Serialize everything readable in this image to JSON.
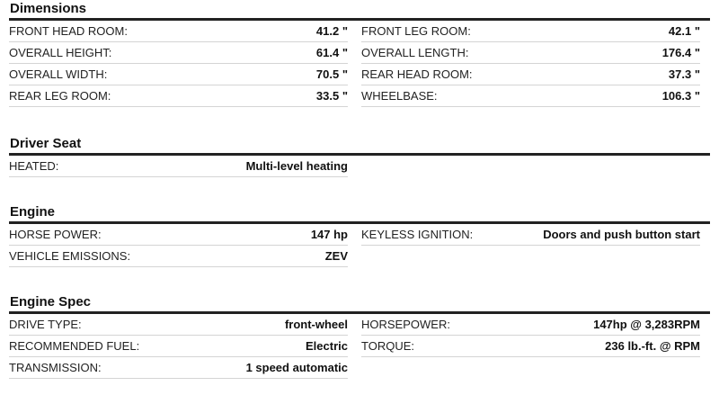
{
  "sections": [
    {
      "title": "Dimensions",
      "rows": [
        [
          {
            "label": "FRONT HEAD ROOM:",
            "value": "41.2 \""
          },
          {
            "label": "FRONT LEG ROOM:",
            "value": "42.1 \""
          }
        ],
        [
          {
            "label": "OVERALL HEIGHT:",
            "value": "61.4 \""
          },
          {
            "label": "OVERALL LENGTH:",
            "value": "176.4 \""
          }
        ],
        [
          {
            "label": "OVERALL WIDTH:",
            "value": "70.5 \""
          },
          {
            "label": "REAR HEAD ROOM:",
            "value": "37.3 \""
          }
        ],
        [
          {
            "label": "REAR LEG ROOM:",
            "value": "33.5 \""
          },
          {
            "label": "WHEELBASE:",
            "value": "106.3 \""
          }
        ]
      ]
    },
    {
      "title": "Driver Seat",
      "rows": [
        [
          {
            "label": "HEATED:",
            "value": "Multi-level heating"
          }
        ]
      ]
    },
    {
      "title": "Engine",
      "rows": [
        [
          {
            "label": "HORSE POWER:",
            "value": "147 hp"
          },
          {
            "label": "KEYLESS IGNITION:",
            "value": "Doors and push button start"
          }
        ],
        [
          {
            "label": "VEHICLE EMISSIONS:",
            "value": "ZEV"
          }
        ]
      ]
    },
    {
      "title": "Engine Spec",
      "rows": [
        [
          {
            "label": "DRIVE TYPE:",
            "value": "front-wheel"
          },
          {
            "label": "HORSEPOWER:",
            "value": "147hp @ 3,283RPM"
          }
        ],
        [
          {
            "label": "RECOMMENDED FUEL:",
            "value": "Electric"
          },
          {
            "label": "TORQUE:",
            "value": "236 lb.-ft. @ RPM"
          }
        ],
        [
          {
            "label": "TRANSMISSION:",
            "value": "1 speed automatic"
          }
        ]
      ]
    }
  ]
}
